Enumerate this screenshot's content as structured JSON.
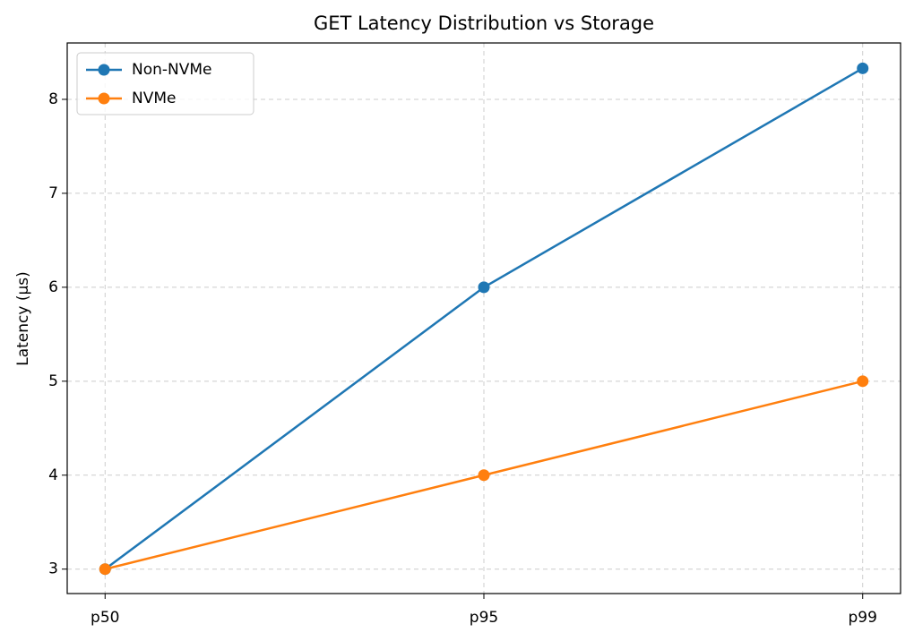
{
  "chart_data": {
    "type": "line",
    "title": "GET Latency Distribution vs Storage",
    "ylabel": "Latency (µs)",
    "categories": [
      "p50",
      "p95",
      "p99"
    ],
    "series": [
      {
        "name": "Non-NVMe",
        "color": "#1f77b4",
        "values": [
          3,
          6,
          8.33
        ]
      },
      {
        "name": "NVMe",
        "color": "#ff7f0e",
        "values": [
          3,
          4,
          5
        ]
      }
    ],
    "ylim": [
      2.74,
      8.6
    ],
    "yticks": [
      3,
      4,
      5,
      6,
      7,
      8
    ],
    "grid": true,
    "legend": "upper left"
  }
}
